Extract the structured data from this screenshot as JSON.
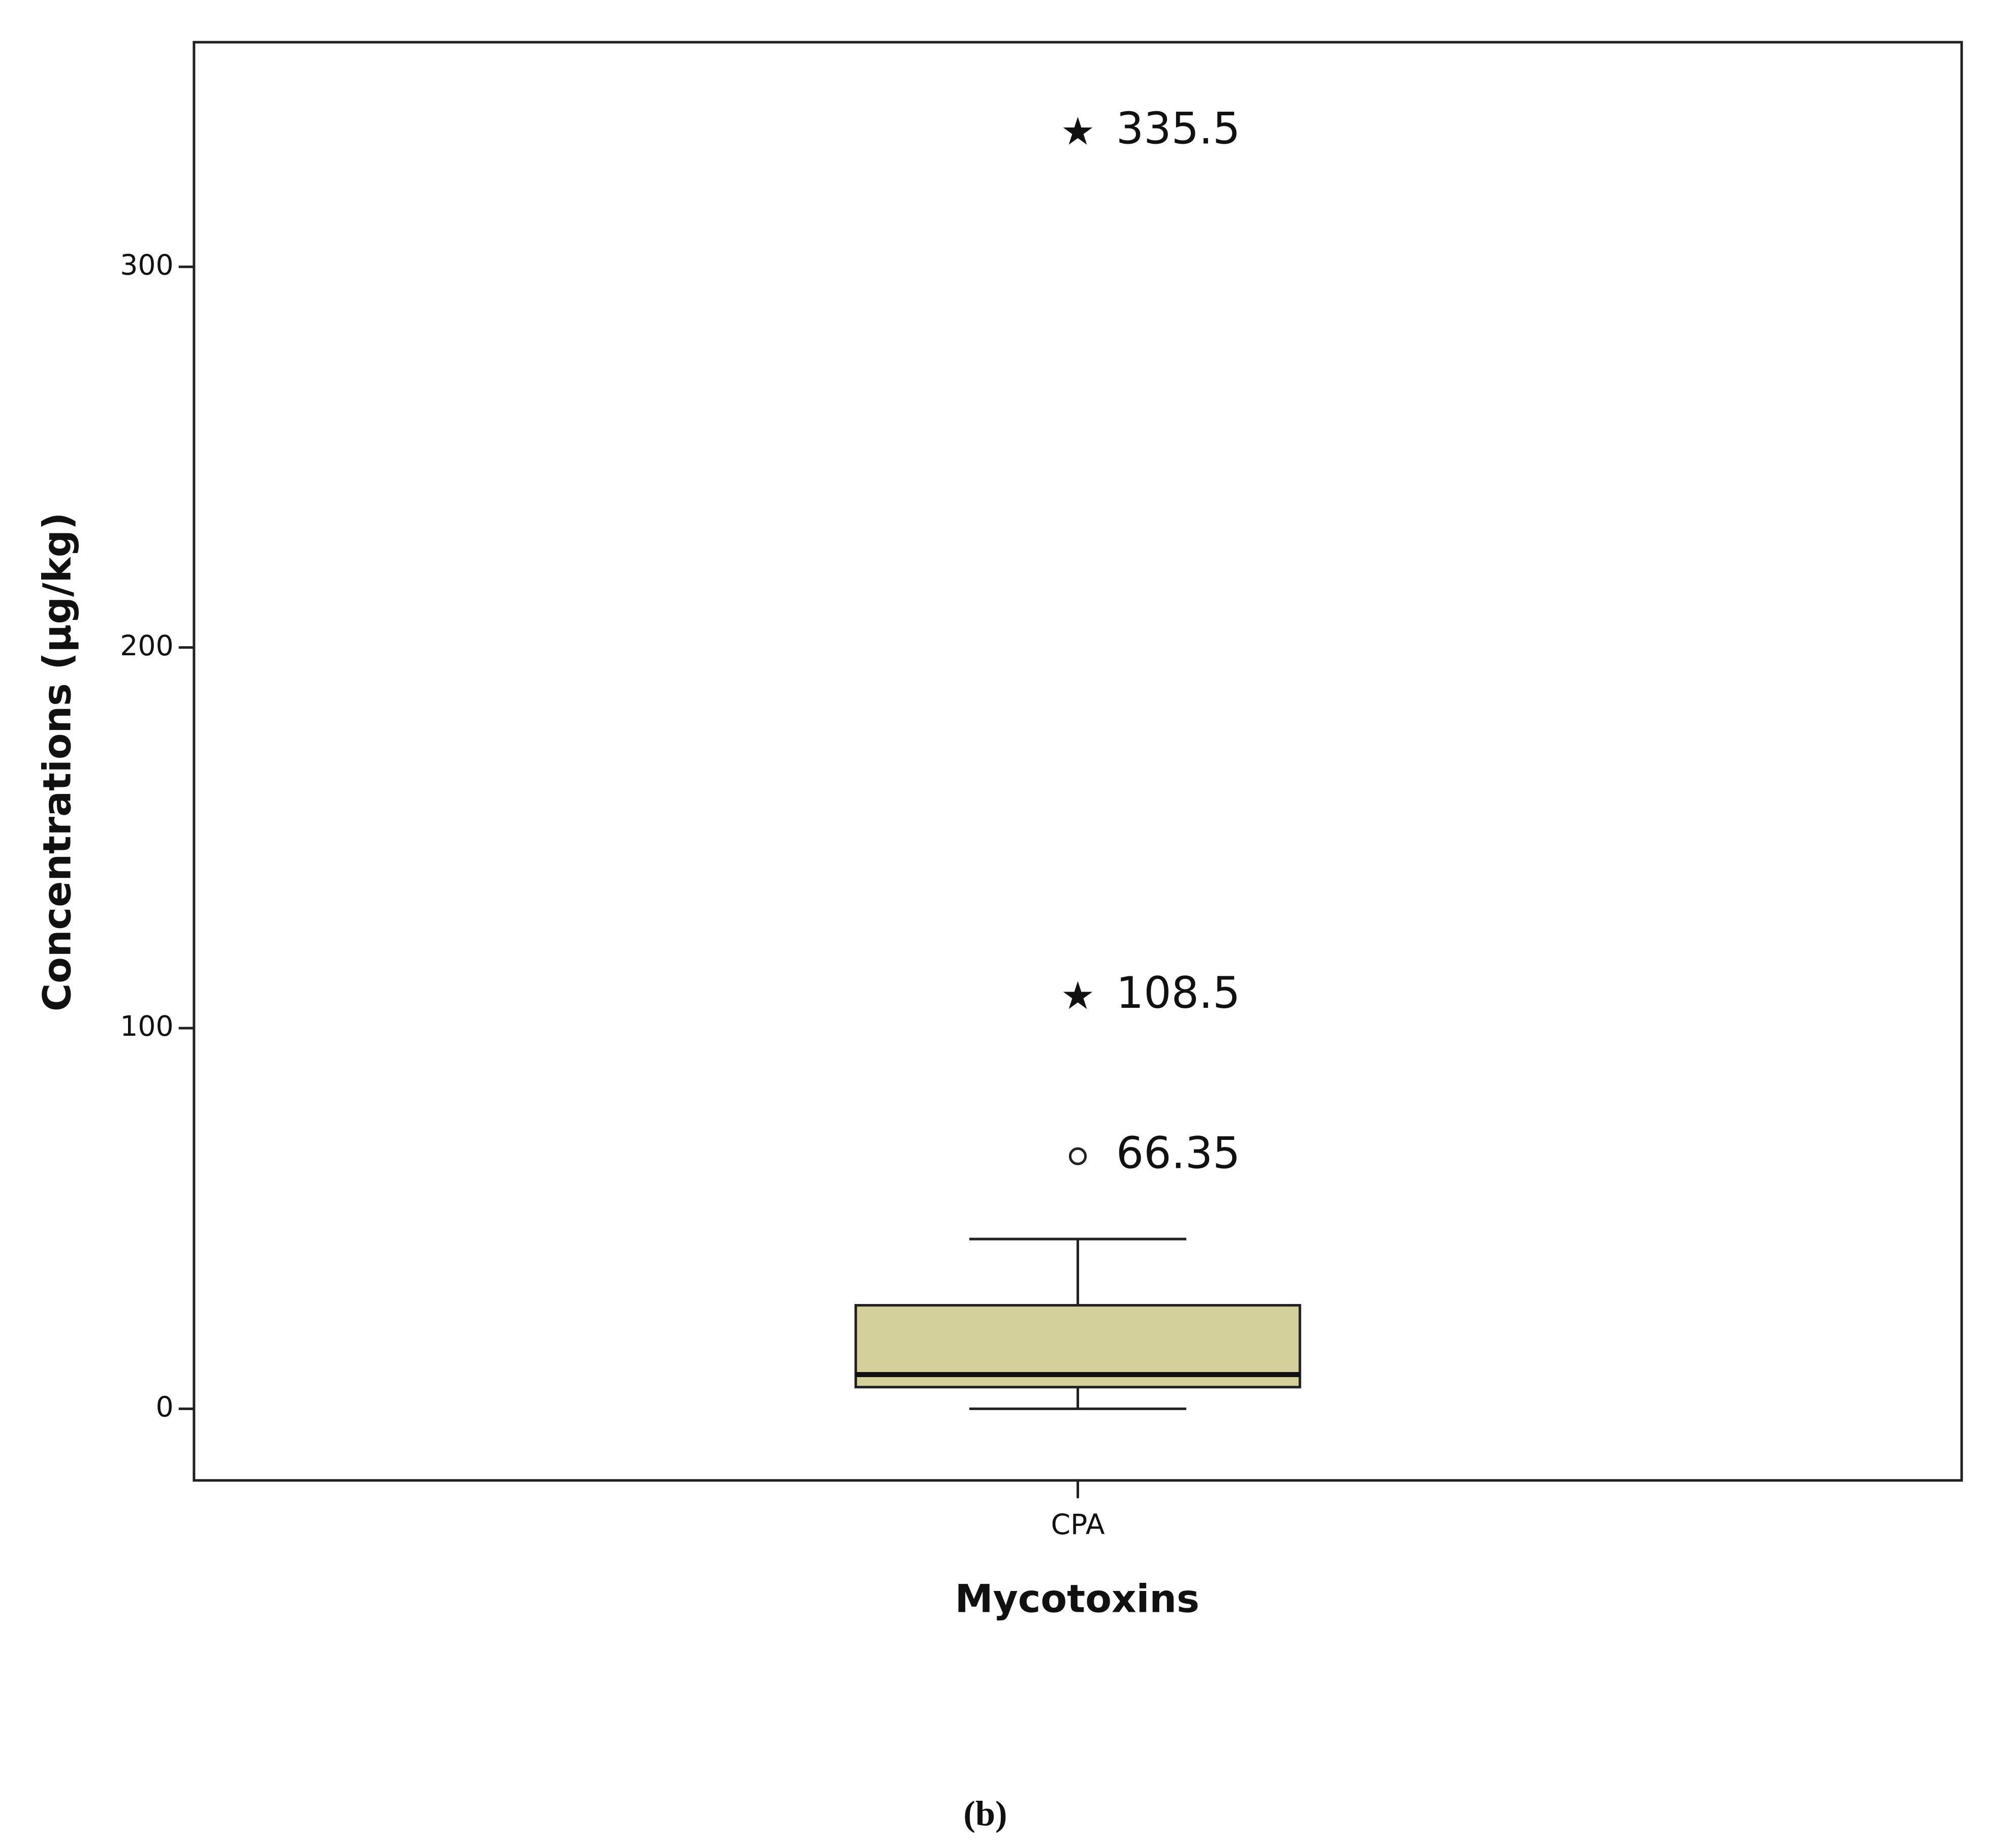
{
  "chart_data": {
    "type": "box",
    "y_label": "Concentrations (µg/kg)",
    "x_label": "Mycotoxins",
    "categories": [
      "CPA"
    ],
    "boxes": [
      {
        "whisker_low": 0,
        "q1": 5.7,
        "median": 9,
        "q3": 27.2,
        "whisker_high": 44.6,
        "color": "#d4d09c"
      }
    ],
    "outliers": [
      {
        "value": 66.35,
        "marker": "circle"
      },
      {
        "value": 108.5,
        "marker": "star"
      },
      {
        "value": 335.5,
        "marker": "star"
      }
    ],
    "ylim": [
      -18.8,
      359
    ],
    "yticks": [
      0,
      100,
      200,
      300
    ],
    "caption": "(b)"
  }
}
